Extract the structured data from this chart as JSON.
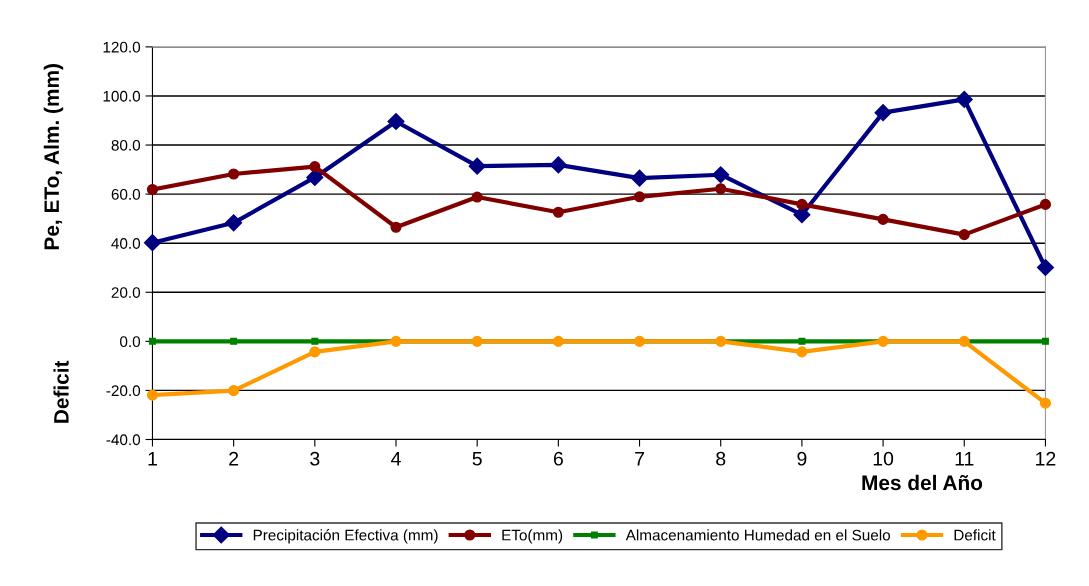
{
  "chart_data": {
    "type": "line",
    "xlabel": "Mes del Año",
    "ylabel": "Pe, ETo, Alm. (mm)",
    "annotations": [
      "Deficit"
    ],
    "x": [
      1,
      2,
      3,
      4,
      5,
      6,
      7,
      8,
      9,
      10,
      11,
      12
    ],
    "xlim": [
      1,
      12
    ],
    "xticks": [
      1,
      2,
      3,
      4,
      5,
      6,
      7,
      8,
      9,
      10,
      11,
      12
    ],
    "ylim": [
      -40,
      120
    ],
    "yticks": [
      {
        "value": -40,
        "label": "-40.0"
      },
      {
        "value": -20,
        "label": "-20.0"
      },
      {
        "value": 0,
        "label": "0.0"
      },
      {
        "value": 20,
        "label": "20.0"
      },
      {
        "value": 40,
        "label": "40.0"
      },
      {
        "value": 60,
        "label": "60.0"
      },
      {
        "value": 80,
        "label": "80.0"
      },
      {
        "value": 100,
        "label": "100.0"
      },
      {
        "value": 120,
        "label": "120.0"
      }
    ],
    "grid": "y",
    "legend": "bottom",
    "series": [
      {
        "name": "Precipitación Efectiva (mm)",
        "color": "#000080",
        "marker": "diamond",
        "values": [
          40.2,
          48.3,
          66.8,
          89.6,
          71.4,
          71.9,
          66.5,
          67.9,
          51.6,
          93.2,
          98.6,
          30.1
        ]
      },
      {
        "name": "ETo(mm)",
        "color": "#800000",
        "marker": "circle",
        "values": [
          61.9,
          68.2,
          71.2,
          46.5,
          58.8,
          52.6,
          58.9,
          62.2,
          55.8,
          49.7,
          43.5,
          55.8
        ]
      },
      {
        "name": "Almacenamiento Humedad en el Suelo",
        "color": "#008000",
        "marker": "square",
        "values": [
          0,
          0,
          0,
          0,
          0,
          0,
          0,
          0,
          0,
          0,
          0,
          0
        ]
      },
      {
        "name": "Deficit",
        "color": "#ff9900",
        "marker": "circle",
        "values": [
          -21.9,
          -20.1,
          -4.3,
          0,
          0,
          0,
          0,
          0,
          -4.3,
          0,
          0,
          -25.2
        ]
      }
    ]
  }
}
